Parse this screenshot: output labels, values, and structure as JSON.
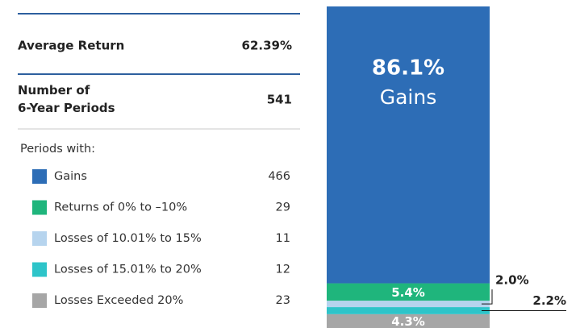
{
  "table": {
    "rows": [
      {
        "label": "Average Return",
        "value": "62.39%"
      },
      {
        "label": "Number of\n6-Year Periods",
        "value": "541"
      }
    ],
    "subheading": "Periods with:",
    "counts": [
      466,
      29,
      11,
      12,
      23
    ]
  },
  "chart_data": {
    "type": "stacked-bar",
    "ylim": [
      0,
      100
    ],
    "series": [
      {
        "name": "Gains",
        "color": "#2d6db6",
        "values": [
          86.1
        ],
        "value_labels": [
          "86.1%"
        ]
      },
      {
        "name": "Returns of 0% to –10%",
        "color": "#1fb57c",
        "values": [
          5.4
        ],
        "value_labels": [
          "5.4%"
        ]
      },
      {
        "name": "Losses of 10.01% to 15%",
        "color": "#b6d4ee",
        "values": [
          2.0
        ],
        "value_labels": [
          "2.0%"
        ]
      },
      {
        "name": "Losses of 15.01% to 20%",
        "color": "#2ec4c9",
        "values": [
          2.2
        ],
        "value_labels": [
          "2.2%"
        ]
      },
      {
        "name": "Losses Exceeded 20%",
        "color": "#a6a6a6",
        "values": [
          4.3
        ],
        "value_labels": [
          "4.3%"
        ]
      }
    ]
  }
}
